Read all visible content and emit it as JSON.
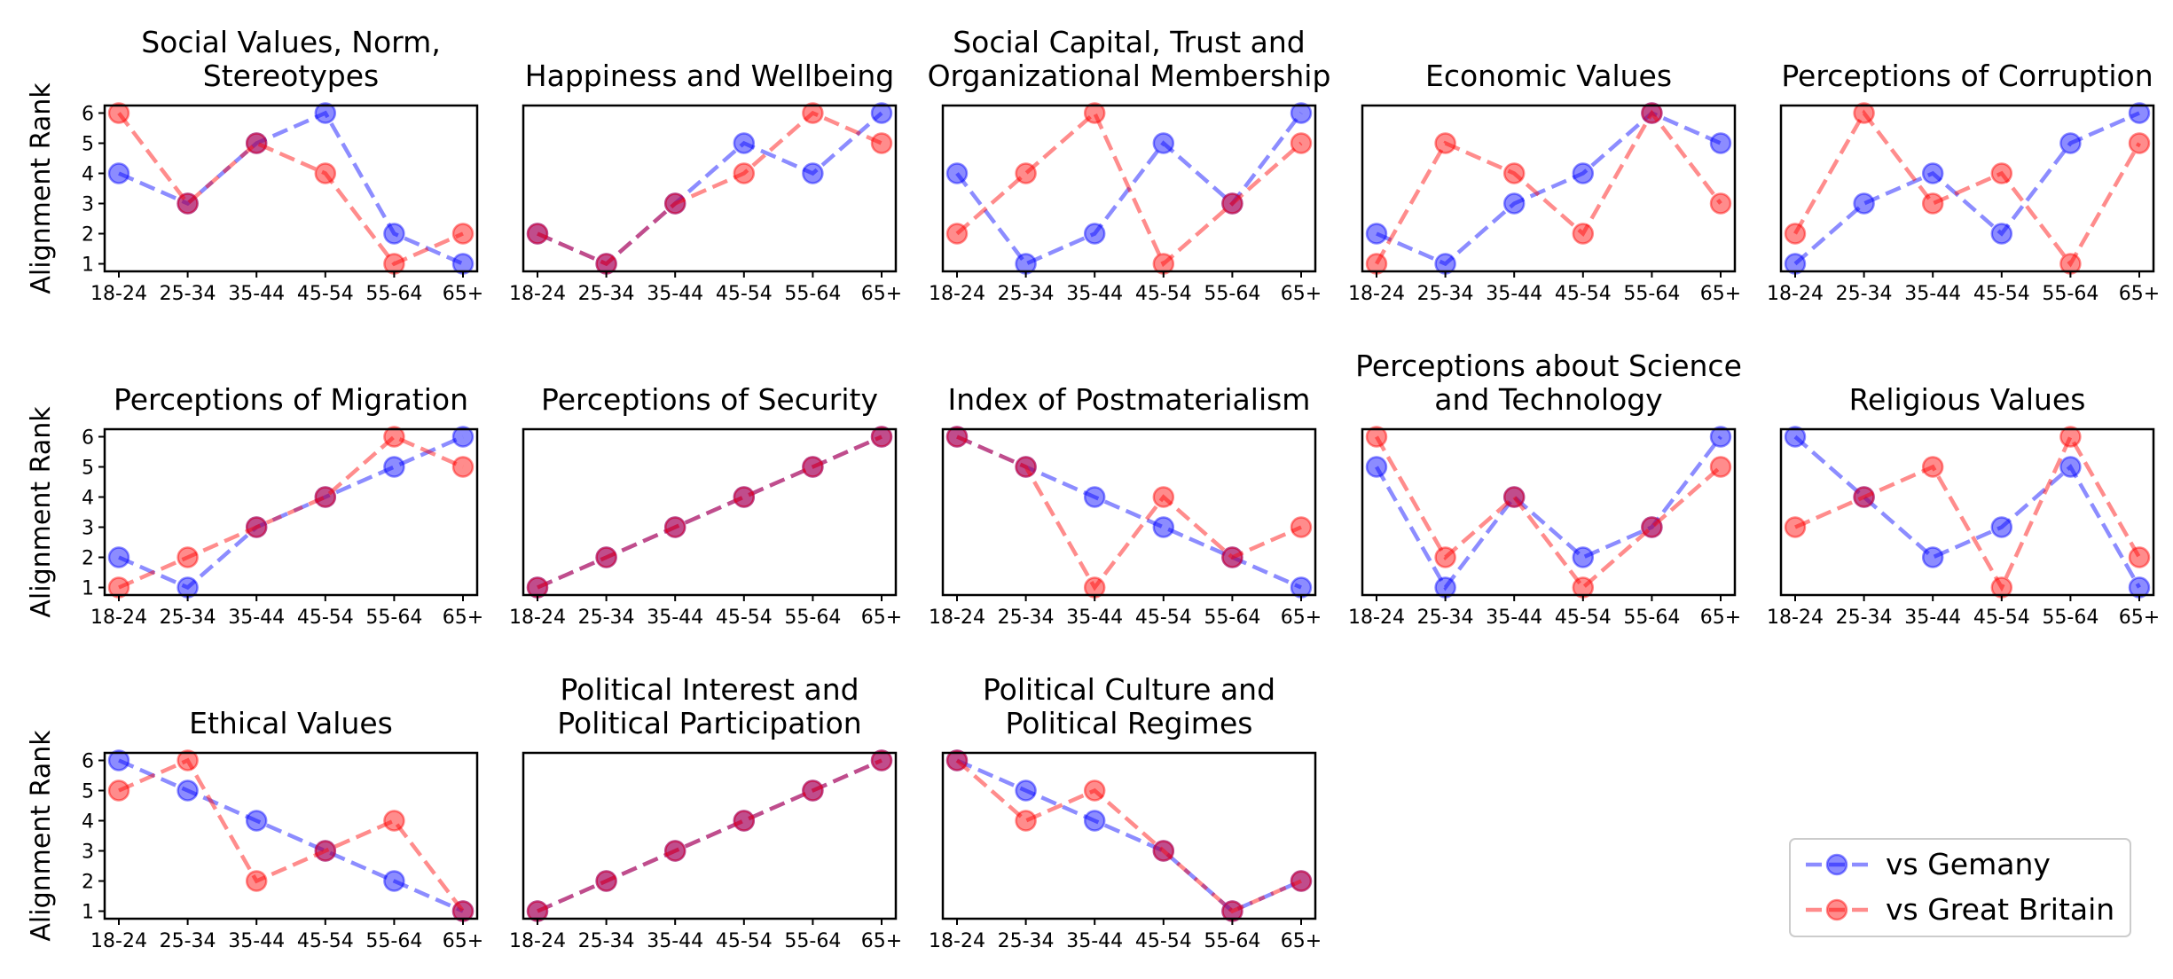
{
  "colors": {
    "germany": "#0000ff",
    "britain": "#ff0000"
  },
  "chart_data": {
    "type": "line",
    "ylabel": "Alignment Rank",
    "categories": [
      "18-24",
      "25-34",
      "35-44",
      "45-54",
      "55-64",
      "65+"
    ],
    "y_ticks": [
      1,
      2,
      3,
      4,
      5,
      6
    ],
    "ylim": [
      0.75,
      6.25
    ],
    "legend": {
      "position": "bottom-right",
      "entries": [
        {
          "key": "germany",
          "label": "vs Gemany"
        },
        {
          "key": "britain",
          "label": "vs Great Britain"
        }
      ]
    },
    "panels": [
      {
        "title": [
          "Social Values, Norm,",
          "Stereotypes"
        ],
        "germany": [
          4,
          3,
          5,
          6,
          2,
          1
        ],
        "britain": [
          6,
          3,
          5,
          4,
          1,
          2
        ]
      },
      {
        "title": [
          "Happiness and Wellbeing"
        ],
        "germany": [
          2,
          1,
          3,
          5,
          4,
          6
        ],
        "britain": [
          2,
          1,
          3,
          4,
          6,
          5
        ]
      },
      {
        "title": [
          "Social Capital, Trust and",
          "Organizational Membership"
        ],
        "germany": [
          4,
          1,
          2,
          5,
          3,
          6
        ],
        "britain": [
          2,
          4,
          6,
          1,
          3,
          5
        ]
      },
      {
        "title": [
          "Economic Values"
        ],
        "germany": [
          2,
          1,
          3,
          4,
          6,
          5
        ],
        "britain": [
          1,
          5,
          4,
          2,
          6,
          3
        ]
      },
      {
        "title": [
          "Perceptions of Corruption"
        ],
        "germany": [
          1,
          3,
          4,
          2,
          5,
          6
        ],
        "britain": [
          2,
          6,
          3,
          4,
          1,
          5
        ]
      },
      {
        "title": [
          "Perceptions of Migration"
        ],
        "germany": [
          2,
          1,
          3,
          4,
          5,
          6
        ],
        "britain": [
          1,
          2,
          3,
          4,
          6,
          5
        ]
      },
      {
        "title": [
          "Perceptions of Security"
        ],
        "germany": [
          1,
          2,
          3,
          4,
          5,
          6
        ],
        "britain": [
          1,
          2,
          3,
          4,
          5,
          6
        ]
      },
      {
        "title": [
          "Index of Postmaterialism"
        ],
        "germany": [
          6,
          5,
          4,
          3,
          2,
          1
        ],
        "britain": [
          6,
          5,
          1,
          4,
          2,
          3
        ]
      },
      {
        "title": [
          "Perceptions about Science",
          "and Technology"
        ],
        "germany": [
          5,
          1,
          4,
          2,
          3,
          6
        ],
        "britain": [
          6,
          2,
          4,
          1,
          3,
          5
        ]
      },
      {
        "title": [
          "Religious Values"
        ],
        "germany": [
          6,
          4,
          2,
          3,
          5,
          1
        ],
        "britain": [
          3,
          4,
          5,
          1,
          6,
          2
        ]
      },
      {
        "title": [
          "Ethical Values"
        ],
        "germany": [
          6,
          5,
          4,
          3,
          2,
          1
        ],
        "britain": [
          5,
          6,
          2,
          3,
          4,
          1
        ]
      },
      {
        "title": [
          "Political Interest and",
          "Political Participation"
        ],
        "germany": [
          1,
          2,
          3,
          4,
          5,
          6
        ],
        "britain": [
          1,
          2,
          3,
          4,
          5,
          6
        ]
      },
      {
        "title": [
          "Political Culture and",
          "Political Regimes"
        ],
        "germany": [
          6,
          5,
          4,
          3,
          1,
          2
        ],
        "britain": [
          6,
          4,
          5,
          3,
          1,
          2
        ]
      }
    ]
  }
}
